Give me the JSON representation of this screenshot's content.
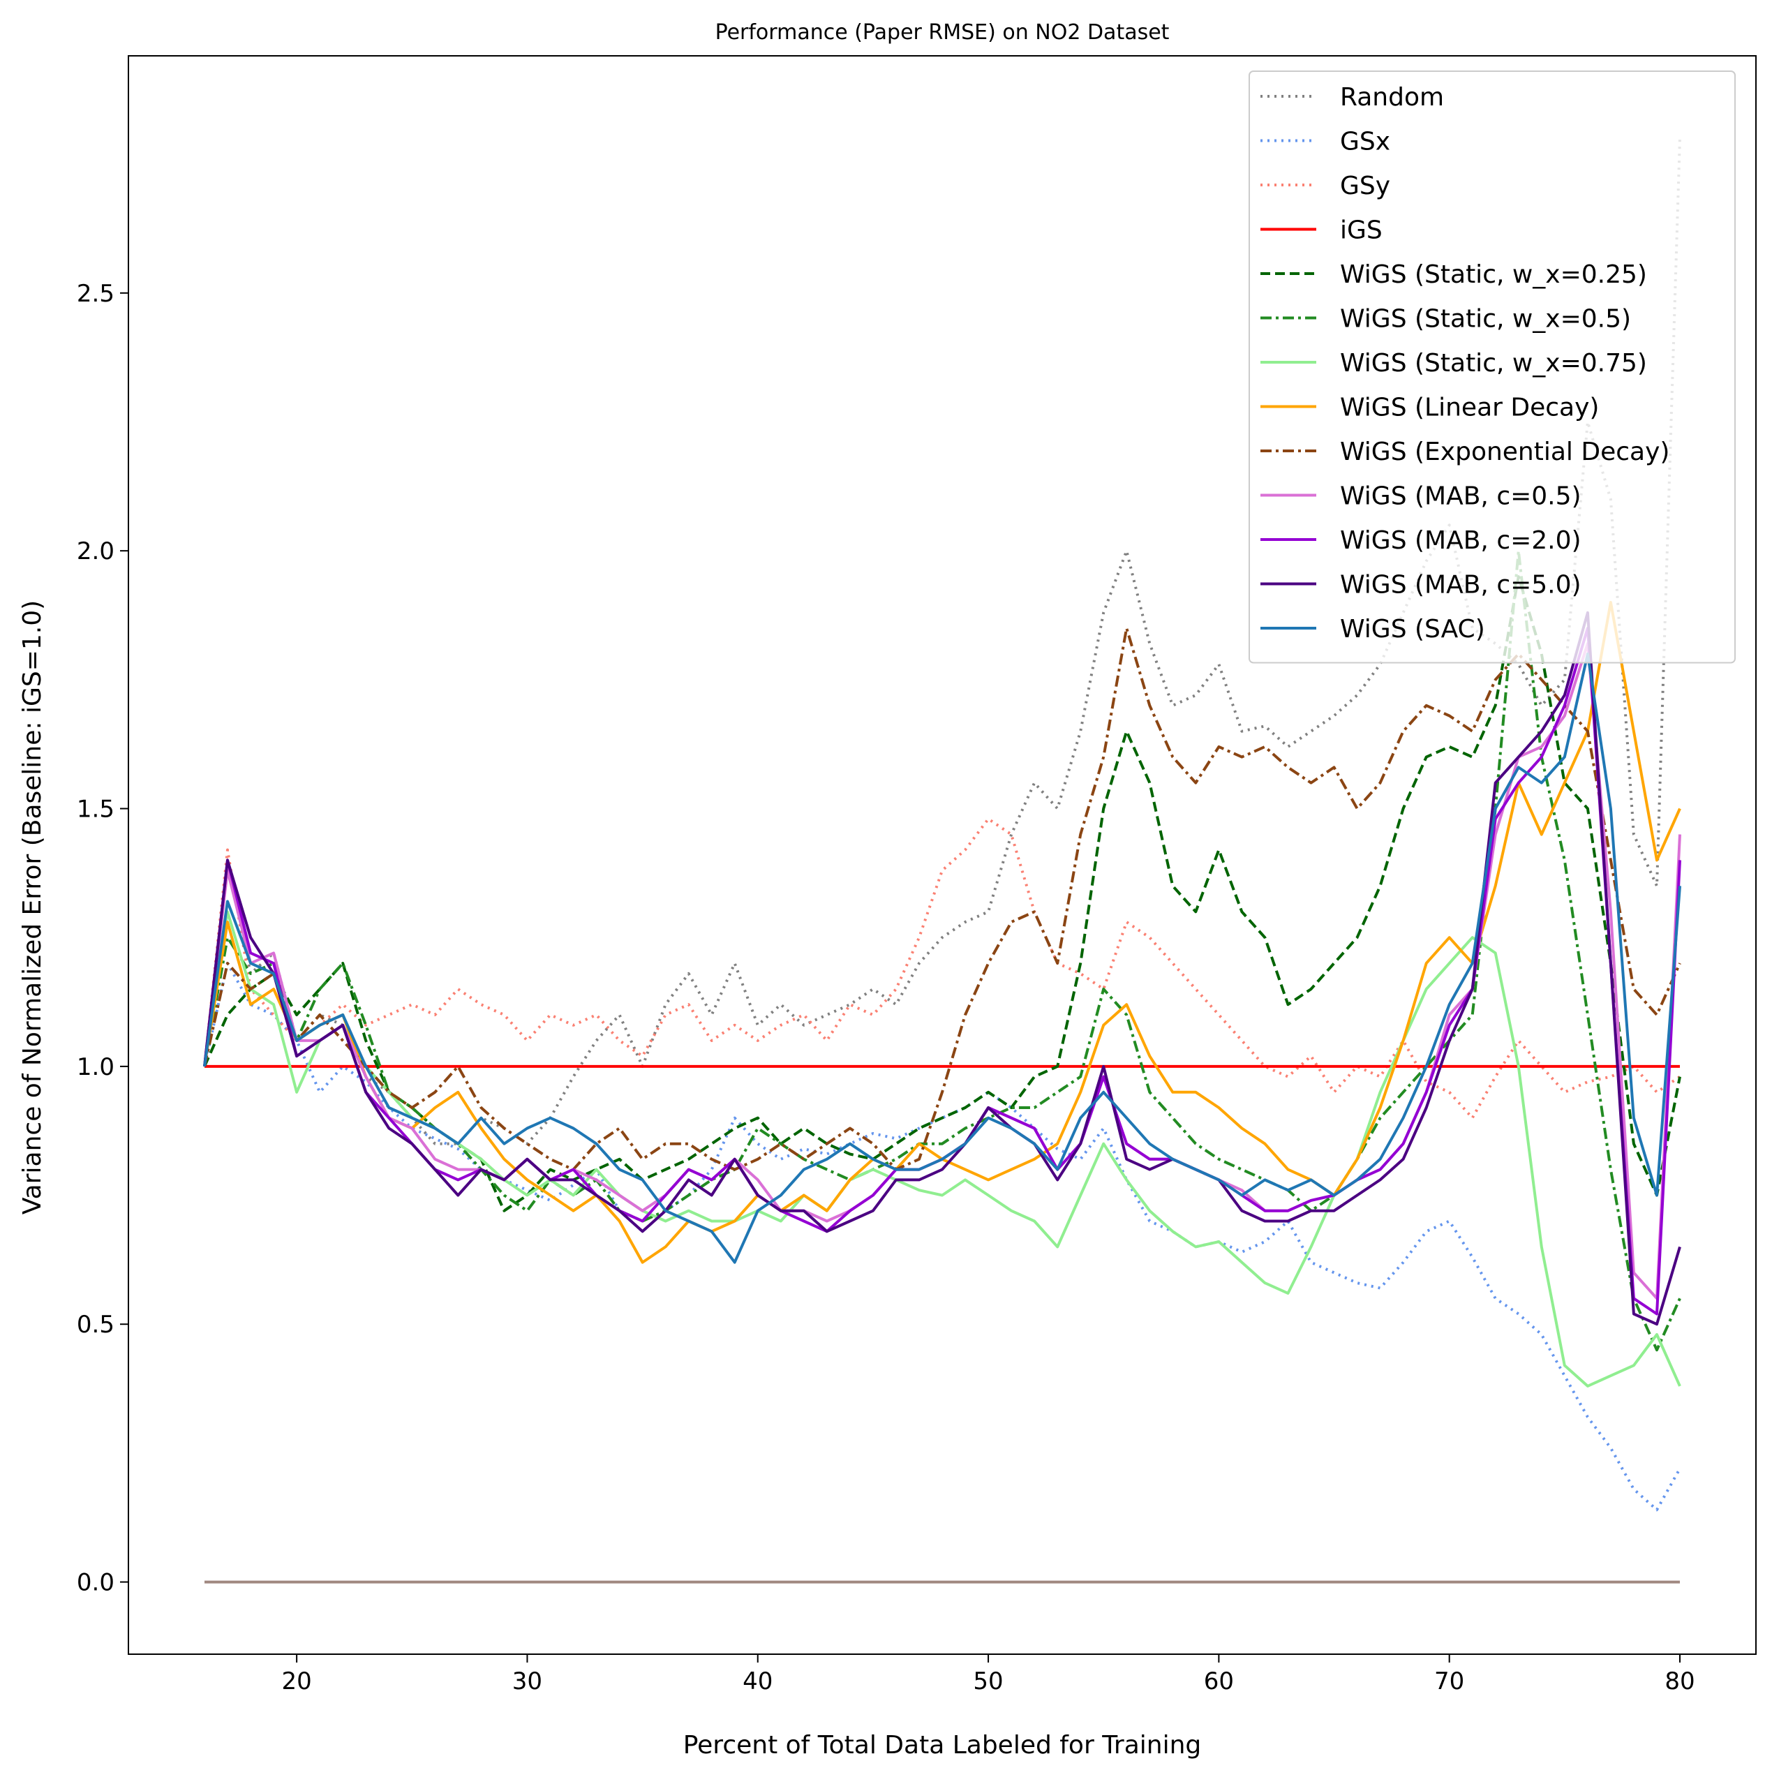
{
  "chart_data": {
    "type": "line",
    "title": "Performance (Paper RMSE) on NO2 Dataset",
    "xlabel": "Percent of Total Data Labeled for Training",
    "ylabel": "Variance of Normalized Error (Baseline: iGS=1.0)",
    "xlim": [
      12.7,
      83.3
    ],
    "ylim": [
      -0.14,
      2.96
    ],
    "xticks": [
      20,
      30,
      40,
      50,
      60,
      70,
      80
    ],
    "yticks": [
      0.0,
      0.5,
      1.0,
      1.5,
      2.0,
      2.5
    ],
    "xtick_labels": [
      "20",
      "30",
      "40",
      "50",
      "60",
      "70",
      "80"
    ],
    "ytick_labels": [
      "0.0",
      "0.5",
      "1.0",
      "1.5",
      "2.0",
      "2.5"
    ],
    "grid": false,
    "legend_position": "top-right",
    "x": [
      16,
      17,
      18,
      19,
      20,
      21,
      22,
      23,
      24,
      25,
      26,
      27,
      28,
      29,
      30,
      31,
      32,
      33,
      34,
      35,
      36,
      37,
      38,
      39,
      40,
      41,
      42,
      43,
      44,
      45,
      46,
      47,
      48,
      49,
      50,
      51,
      52,
      53,
      54,
      55,
      56,
      57,
      58,
      59,
      60,
      61,
      62,
      63,
      64,
      65,
      66,
      67,
      68,
      69,
      70,
      71,
      72,
      73,
      74,
      75,
      76,
      77,
      78,
      79,
      80
    ],
    "series": [
      {
        "name": "Random",
        "color": "#808080",
        "dash": "dotted",
        "values": [
          1.0,
          1.4,
          1.18,
          1.22,
          1.05,
          1.1,
          1.08,
          0.98,
          0.95,
          0.9,
          0.85,
          0.85,
          0.9,
          0.88,
          0.85,
          0.9,
          0.98,
          1.05,
          1.1,
          1.0,
          1.12,
          1.18,
          1.1,
          1.2,
          1.08,
          1.12,
          1.08,
          1.1,
          1.12,
          1.15,
          1.12,
          1.2,
          1.25,
          1.28,
          1.3,
          1.45,
          1.55,
          1.5,
          1.65,
          1.88,
          2.0,
          1.82,
          1.7,
          1.72,
          1.78,
          1.65,
          1.66,
          1.62,
          1.65,
          1.68,
          1.72,
          1.78,
          1.88,
          1.98,
          2.05,
          1.85,
          1.82,
          1.78,
          1.7,
          1.75,
          2.25,
          2.1,
          1.45,
          1.35,
          2.8
        ]
      },
      {
        "name": "GSx",
        "color": "#6495ED",
        "dash": "dotted",
        "values": [
          1.0,
          1.2,
          1.12,
          1.1,
          1.05,
          0.95,
          1.0,
          0.97,
          0.92,
          0.88,
          0.86,
          0.84,
          0.8,
          0.78,
          0.76,
          0.74,
          0.77,
          0.8,
          0.72,
          0.68,
          0.72,
          0.75,
          0.8,
          0.9,
          0.85,
          0.82,
          0.84,
          0.83,
          0.85,
          0.87,
          0.86,
          0.88,
          0.9,
          0.92,
          0.95,
          0.92,
          0.88,
          0.84,
          0.82,
          0.88,
          0.78,
          0.7,
          0.68,
          0.65,
          0.66,
          0.64,
          0.66,
          0.7,
          0.62,
          0.6,
          0.58,
          0.57,
          0.62,
          0.68,
          0.7,
          0.63,
          0.55,
          0.52,
          0.48,
          0.4,
          0.32,
          0.26,
          0.18,
          0.14,
          0.22
        ]
      },
      {
        "name": "GSy",
        "color": "#FA8072",
        "dash": "dotted",
        "values": [
          1.0,
          1.42,
          1.15,
          1.1,
          1.05,
          1.08,
          1.12,
          1.08,
          1.1,
          1.12,
          1.1,
          1.15,
          1.12,
          1.1,
          1.05,
          1.1,
          1.08,
          1.1,
          1.05,
          1.02,
          1.1,
          1.12,
          1.05,
          1.08,
          1.05,
          1.08,
          1.1,
          1.05,
          1.12,
          1.1,
          1.15,
          1.25,
          1.38,
          1.42,
          1.48,
          1.45,
          1.3,
          1.2,
          1.18,
          1.15,
          1.28,
          1.25,
          1.2,
          1.15,
          1.1,
          1.05,
          1.0,
          0.98,
          1.02,
          0.95,
          1.0,
          0.98,
          1.05,
          0.97,
          0.95,
          0.9,
          0.98,
          1.05,
          1.0,
          0.95,
          0.97,
          0.98,
          1.0,
          0.95,
          0.98
        ]
      },
      {
        "name": "iGS",
        "color": "#FF0000",
        "dash": "solid",
        "values": [
          1.0,
          1.0,
          1.0,
          1.0,
          1.0,
          1.0,
          1.0,
          1.0,
          1.0,
          1.0,
          1.0,
          1.0,
          1.0,
          1.0,
          1.0,
          1.0,
          1.0,
          1.0,
          1.0,
          1.0,
          1.0,
          1.0,
          1.0,
          1.0,
          1.0,
          1.0,
          1.0,
          1.0,
          1.0,
          1.0,
          1.0,
          1.0,
          1.0,
          1.0,
          1.0,
          1.0,
          1.0,
          1.0,
          1.0,
          1.0,
          1.0,
          1.0,
          1.0,
          1.0,
          1.0,
          1.0,
          1.0,
          1.0,
          1.0,
          1.0,
          1.0,
          1.0,
          1.0,
          1.0,
          1.0,
          1.0,
          1.0,
          1.0,
          1.0,
          1.0,
          1.0,
          1.0,
          1.0,
          1.0,
          1.0
        ]
      },
      {
        "name": "WiGS (Static, w_x=0.25)",
        "color": "#006400",
        "dash": "dashed",
        "values": [
          1.0,
          1.1,
          1.15,
          1.18,
          1.1,
          1.15,
          1.2,
          1.05,
          0.95,
          0.92,
          0.88,
          0.85,
          0.82,
          0.72,
          0.75,
          0.8,
          0.78,
          0.8,
          0.82,
          0.78,
          0.8,
          0.82,
          0.85,
          0.88,
          0.9,
          0.85,
          0.88,
          0.85,
          0.83,
          0.82,
          0.85,
          0.88,
          0.9,
          0.92,
          0.95,
          0.92,
          0.98,
          1.0,
          1.2,
          1.5,
          1.65,
          1.55,
          1.35,
          1.3,
          1.42,
          1.3,
          1.25,
          1.12,
          1.15,
          1.2,
          1.25,
          1.35,
          1.5,
          1.6,
          1.62,
          1.6,
          1.7,
          1.95,
          1.8,
          1.55,
          1.5,
          1.2,
          0.85,
          0.75,
          0.98
        ]
      },
      {
        "name": "WiGS (Static, w_x=0.5)",
        "color": "#228B22",
        "dash": "dashdot",
        "values": [
          1.0,
          1.25,
          1.18,
          1.2,
          1.05,
          1.15,
          1.2,
          1.08,
          0.95,
          0.92,
          0.88,
          0.85,
          0.8,
          0.75,
          0.72,
          0.78,
          0.75,
          0.78,
          0.72,
          0.7,
          0.72,
          0.75,
          0.78,
          0.8,
          0.88,
          0.85,
          0.82,
          0.8,
          0.78,
          0.8,
          0.82,
          0.85,
          0.85,
          0.88,
          0.9,
          0.92,
          0.92,
          0.95,
          0.98,
          1.15,
          1.1,
          0.95,
          0.9,
          0.85,
          0.82,
          0.8,
          0.78,
          0.76,
          0.72,
          0.75,
          0.82,
          0.9,
          0.95,
          1.0,
          1.05,
          1.1,
          1.5,
          2.0,
          1.6,
          1.4,
          1.1,
          0.8,
          0.55,
          0.45,
          0.55
        ]
      },
      {
        "name": "WiGS (Static, w_x=0.75)",
        "color": "#90EE90",
        "dash": "solid",
        "values": [
          1.0,
          1.3,
          1.15,
          1.12,
          0.95,
          1.05,
          1.08,
          1.0,
          0.95,
          0.9,
          0.88,
          0.85,
          0.82,
          0.78,
          0.75,
          0.78,
          0.75,
          0.8,
          0.75,
          0.72,
          0.7,
          0.72,
          0.7,
          0.7,
          0.72,
          0.7,
          0.75,
          0.72,
          0.78,
          0.8,
          0.78,
          0.76,
          0.75,
          0.78,
          0.75,
          0.72,
          0.7,
          0.65,
          0.75,
          0.85,
          0.78,
          0.72,
          0.68,
          0.65,
          0.66,
          0.62,
          0.58,
          0.56,
          0.65,
          0.75,
          0.82,
          0.95,
          1.05,
          1.15,
          1.2,
          1.25,
          1.22,
          1.0,
          0.65,
          0.42,
          0.38,
          0.4,
          0.42,
          0.48,
          0.38
        ]
      },
      {
        "name": "WiGS (Linear Decay)",
        "color": "#FFA500",
        "dash": "solid",
        "values": [
          1.0,
          1.28,
          1.12,
          1.15,
          1.05,
          1.08,
          1.1,
          0.98,
          0.9,
          0.88,
          0.92,
          0.95,
          0.88,
          0.82,
          0.78,
          0.75,
          0.72,
          0.75,
          0.7,
          0.62,
          0.65,
          0.7,
          0.68,
          0.7,
          0.75,
          0.72,
          0.75,
          0.72,
          0.78,
          0.82,
          0.8,
          0.85,
          0.82,
          0.8,
          0.78,
          0.8,
          0.82,
          0.85,
          0.95,
          1.08,
          1.12,
          1.02,
          0.95,
          0.95,
          0.92,
          0.88,
          0.85,
          0.8,
          0.78,
          0.75,
          0.82,
          0.92,
          1.05,
          1.2,
          1.25,
          1.2,
          1.35,
          1.55,
          1.45,
          1.55,
          1.65,
          1.9,
          1.65,
          1.4,
          1.5
        ]
      },
      {
        "name": "WiGS (Exponential Decay)",
        "color": "#8B4513",
        "dash": "dashdot",
        "values": [
          1.0,
          1.2,
          1.15,
          1.18,
          1.05,
          1.1,
          1.05,
          1.0,
          0.95,
          0.92,
          0.95,
          1.0,
          0.92,
          0.88,
          0.85,
          0.82,
          0.8,
          0.85,
          0.88,
          0.82,
          0.85,
          0.85,
          0.82,
          0.8,
          0.82,
          0.85,
          0.82,
          0.85,
          0.88,
          0.85,
          0.8,
          0.82,
          0.95,
          1.1,
          1.2,
          1.28,
          1.3,
          1.2,
          1.45,
          1.6,
          1.85,
          1.7,
          1.6,
          1.55,
          1.62,
          1.6,
          1.62,
          1.58,
          1.55,
          1.58,
          1.5,
          1.55,
          1.65,
          1.7,
          1.68,
          1.65,
          1.75,
          1.8,
          1.75,
          1.7,
          1.65,
          1.4,
          1.15,
          1.1,
          1.2
        ]
      },
      {
        "name": "WiGS (MAB, c=0.5)",
        "color": "#DA70D6",
        "dash": "solid",
        "values": [
          1.0,
          1.38,
          1.2,
          1.22,
          1.05,
          1.05,
          1.08,
          0.98,
          0.9,
          0.88,
          0.82,
          0.8,
          0.8,
          0.78,
          0.82,
          0.78,
          0.8,
          0.78,
          0.75,
          0.72,
          0.75,
          0.8,
          0.78,
          0.82,
          0.78,
          0.72,
          0.72,
          0.7,
          0.72,
          0.75,
          0.8,
          0.8,
          0.82,
          0.85,
          0.92,
          0.9,
          0.88,
          0.8,
          0.85,
          0.98,
          0.85,
          0.82,
          0.82,
          0.8,
          0.78,
          0.76,
          0.72,
          0.72,
          0.74,
          0.75,
          0.78,
          0.8,
          0.85,
          0.95,
          1.1,
          1.15,
          1.45,
          1.6,
          1.62,
          1.68,
          1.82,
          1.3,
          0.6,
          0.55,
          1.45
        ]
      },
      {
        "name": "WiGS (MAB, c=2.0)",
        "color": "#9400D3",
        "dash": "solid",
        "values": [
          1.0,
          1.4,
          1.22,
          1.2,
          1.02,
          1.05,
          1.08,
          0.95,
          0.9,
          0.85,
          0.8,
          0.78,
          0.8,
          0.78,
          0.82,
          0.78,
          0.8,
          0.75,
          0.72,
          0.7,
          0.75,
          0.8,
          0.78,
          0.82,
          0.75,
          0.72,
          0.7,
          0.68,
          0.72,
          0.75,
          0.8,
          0.8,
          0.82,
          0.85,
          0.92,
          0.9,
          0.88,
          0.8,
          0.85,
          0.98,
          0.85,
          0.82,
          0.82,
          0.8,
          0.78,
          0.75,
          0.72,
          0.72,
          0.74,
          0.75,
          0.78,
          0.8,
          0.85,
          0.95,
          1.08,
          1.15,
          1.48,
          1.55,
          1.6,
          1.7,
          1.85,
          1.2,
          0.55,
          0.52,
          1.4
        ]
      },
      {
        "name": "WiGS (MAB, c=5.0)",
        "color": "#4B0082",
        "dash": "solid",
        "values": [
          1.0,
          1.4,
          1.25,
          1.18,
          1.02,
          1.05,
          1.08,
          0.95,
          0.88,
          0.85,
          0.8,
          0.75,
          0.8,
          0.78,
          0.82,
          0.78,
          0.78,
          0.75,
          0.72,
          0.68,
          0.72,
          0.78,
          0.75,
          0.82,
          0.75,
          0.72,
          0.72,
          0.68,
          0.7,
          0.72,
          0.78,
          0.78,
          0.8,
          0.85,
          0.92,
          0.88,
          0.85,
          0.78,
          0.85,
          1.0,
          0.82,
          0.8,
          0.82,
          0.8,
          0.78,
          0.72,
          0.7,
          0.7,
          0.72,
          0.72,
          0.75,
          0.78,
          0.82,
          0.92,
          1.05,
          1.15,
          1.55,
          1.6,
          1.65,
          1.72,
          1.88,
          1.2,
          0.52,
          0.5,
          0.65
        ]
      },
      {
        "name": "WiGS (SAC)",
        "color": "#1F77B4",
        "dash": "solid",
        "values": [
          1.0,
          1.32,
          1.2,
          1.18,
          1.05,
          1.08,
          1.1,
          1.0,
          0.92,
          0.9,
          0.88,
          0.85,
          0.9,
          0.85,
          0.88,
          0.9,
          0.88,
          0.85,
          0.8,
          0.78,
          0.72,
          0.7,
          0.68,
          0.62,
          0.72,
          0.75,
          0.8,
          0.82,
          0.85,
          0.82,
          0.8,
          0.8,
          0.82,
          0.85,
          0.9,
          0.88,
          0.85,
          0.8,
          0.9,
          0.95,
          0.9,
          0.85,
          0.82,
          0.8,
          0.78,
          0.75,
          0.78,
          0.76,
          0.78,
          0.75,
          0.78,
          0.82,
          0.9,
          1.0,
          1.12,
          1.2,
          1.5,
          1.58,
          1.55,
          1.6,
          1.8,
          1.5,
          0.9,
          0.75,
          1.35
        ]
      },
      {
        "name": "",
        "color": "#A08880",
        "dash": "solid",
        "values": [
          0.0,
          0.0,
          0.0,
          0.0,
          0.0,
          0.0,
          0.0,
          0.0,
          0.0,
          0.0,
          0.0,
          0.0,
          0.0,
          0.0,
          0.0,
          0.0,
          0.0,
          0.0,
          0.0,
          0.0,
          0.0,
          0.0,
          0.0,
          0.0,
          0.0,
          0.0,
          0.0,
          0.0,
          0.0,
          0.0,
          0.0,
          0.0,
          0.0,
          0.0,
          0.0,
          0.0,
          0.0,
          0.0,
          0.0,
          0.0,
          0.0,
          0.0,
          0.0,
          0.0,
          0.0,
          0.0,
          0.0,
          0.0,
          0.0,
          0.0,
          0.0,
          0.0,
          0.0,
          0.0,
          0.0,
          0.0,
          0.0,
          0.0,
          0.0,
          0.0,
          0.0,
          0.0,
          0.0,
          0.0,
          0.0
        ]
      }
    ],
    "legend": [
      "Random",
      "GSx",
      "GSy",
      "iGS",
      "WiGS (Static, w_x=0.25)",
      "WiGS (Static, w_x=0.5)",
      "WiGS (Static, w_x=0.75)",
      "WiGS (Linear Decay)",
      "WiGS (Exponential Decay)",
      "WiGS (MAB, c=0.5)",
      "WiGS (MAB, c=2.0)",
      "WiGS (MAB, c=5.0)",
      "WiGS (SAC)"
    ]
  }
}
